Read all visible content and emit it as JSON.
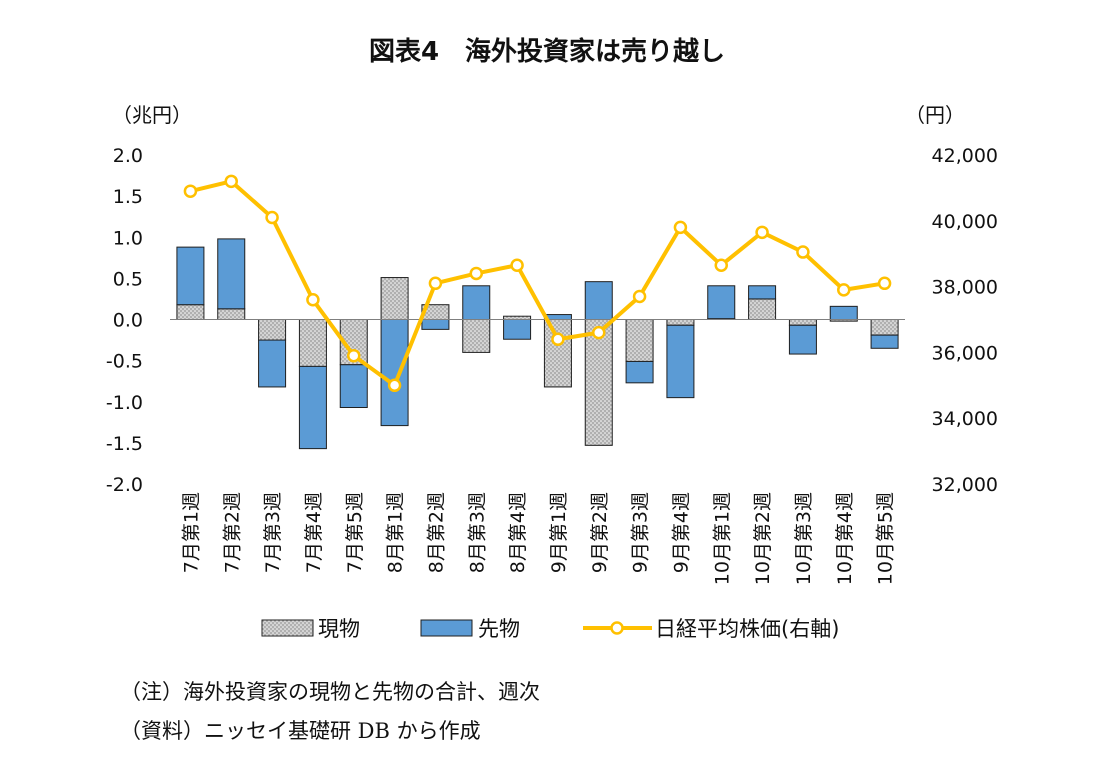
{
  "chart_data": {
    "type": "bar+line",
    "title": "図表4　海外投資家は売り越し",
    "left_unit": "（兆円）",
    "right_unit": "（円）",
    "categories": [
      "7月第1週",
      "7月第2週",
      "7月第3週",
      "7月第4週",
      "7月第5週",
      "8月第1週",
      "8月第2週",
      "8月第3週",
      "8月第4週",
      "9月第1週",
      "9月第2週",
      "9月第3週",
      "9月第4週",
      "10月第1週",
      "10月第2週",
      "10月第3週",
      "10月第4週",
      "10月第5週"
    ],
    "left_axis": {
      "min": -2.0,
      "max": 2.0,
      "ticks": [
        "2.0",
        "1.5",
        "1.0",
        "0.5",
        "0.0",
        "-0.5",
        "-1.0",
        "-1.5",
        "-2.0"
      ]
    },
    "right_axis": {
      "min": 32000,
      "max": 42000,
      "ticks": [
        "42,000",
        "40,000",
        "38,000",
        "36,000",
        "34,000",
        "32,000"
      ]
    },
    "series": [
      {
        "name": "現物",
        "kind": "stacked-bar",
        "color": "#a6a6a6",
        "values": [
          0.18,
          0.13,
          -0.25,
          -0.57,
          -0.55,
          0.51,
          0.18,
          -0.4,
          0.04,
          -0.82,
          -1.53,
          -0.51,
          -0.07,
          0.01,
          0.25,
          -0.07,
          -0.02,
          -0.19
        ]
      },
      {
        "name": "先物",
        "kind": "stacked-bar",
        "color": "#5b9bd5",
        "values": [
          0.7,
          0.85,
          -0.57,
          -1.0,
          -0.52,
          -1.29,
          -0.12,
          0.41,
          -0.24,
          0.06,
          0.46,
          -0.26,
          -0.88,
          0.4,
          0.16,
          -0.35,
          0.16,
          -0.16
        ]
      },
      {
        "name": "日経平均株価(右軸)",
        "kind": "line",
        "color": "#ffc000",
        "axis": "right",
        "values": [
          40900,
          41200,
          40100,
          37600,
          35900,
          35000,
          38100,
          38400,
          38650,
          36400,
          36600,
          37700,
          39800,
          38650,
          39650,
          39050,
          37900,
          38100
        ]
      }
    ]
  },
  "notes": [
    "（注）海外投資家の現物と先物の合計、週次",
    "（資料）ニッセイ基礎研 DB から作成"
  ]
}
